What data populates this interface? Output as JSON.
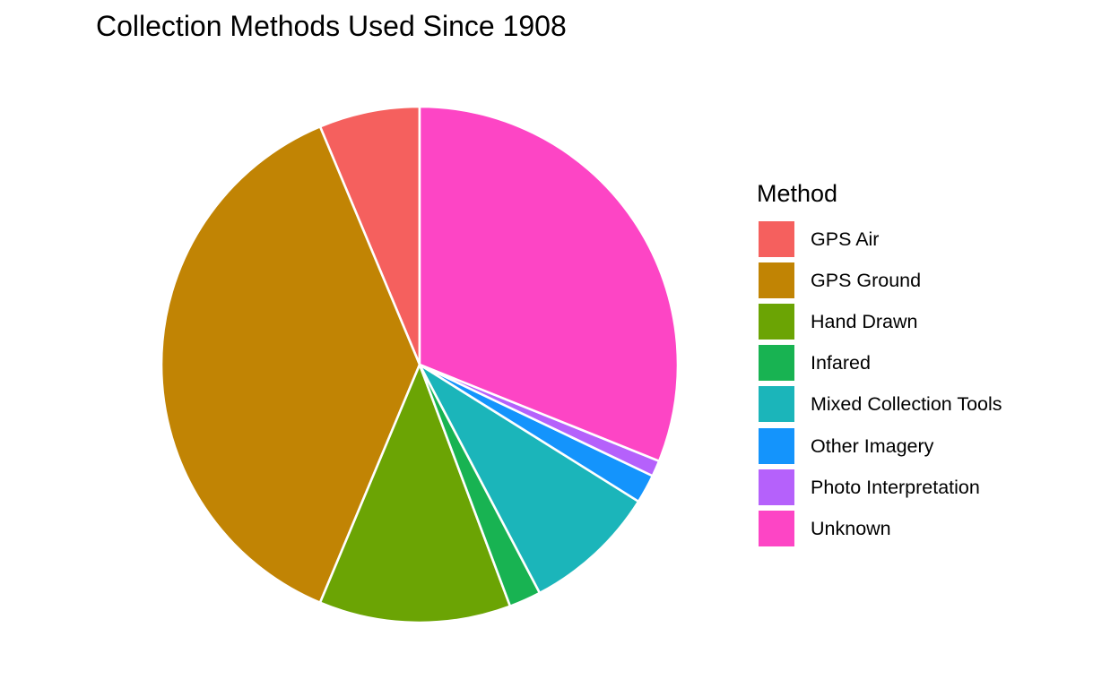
{
  "chart_data": {
    "type": "pie",
    "title": "Collection Methods Used Since 1908",
    "legend_title": "Method",
    "legend_position": "right",
    "start": "top",
    "direction": "counterclockwise",
    "slices": [
      {
        "label": "GPS Air",
        "value": 6.3,
        "color": "#F8766D"
      },
      {
        "label": "GPS Ground",
        "value": 37.4,
        "color": "#C49A00"
      },
      {
        "label": "Hand Drawn",
        "value": 12.0,
        "color": "#53B400"
      },
      {
        "label": "Infared",
        "value": 2.0,
        "color": "#00C094"
      },
      {
        "label": "Mixed Collection Tools",
        "value": 8.4,
        "color": "#00B6EB"
      },
      {
        "label": "Other Imagery",
        "value": 1.8,
        "color": "#06A4FF"
      },
      {
        "label": "Photo Interpretation",
        "value": 1.0,
        "color": "#A58AFF"
      },
      {
        "label": "Unknown",
        "value": 31.1,
        "color": "#FB61D7"
      }
    ]
  },
  "render_colors": [
    "#F5605E",
    "#C18404",
    "#6BA404",
    "#18B352",
    "#1BB5BA",
    "#1494FC",
    "#B561FB",
    "#FD45C5"
  ]
}
